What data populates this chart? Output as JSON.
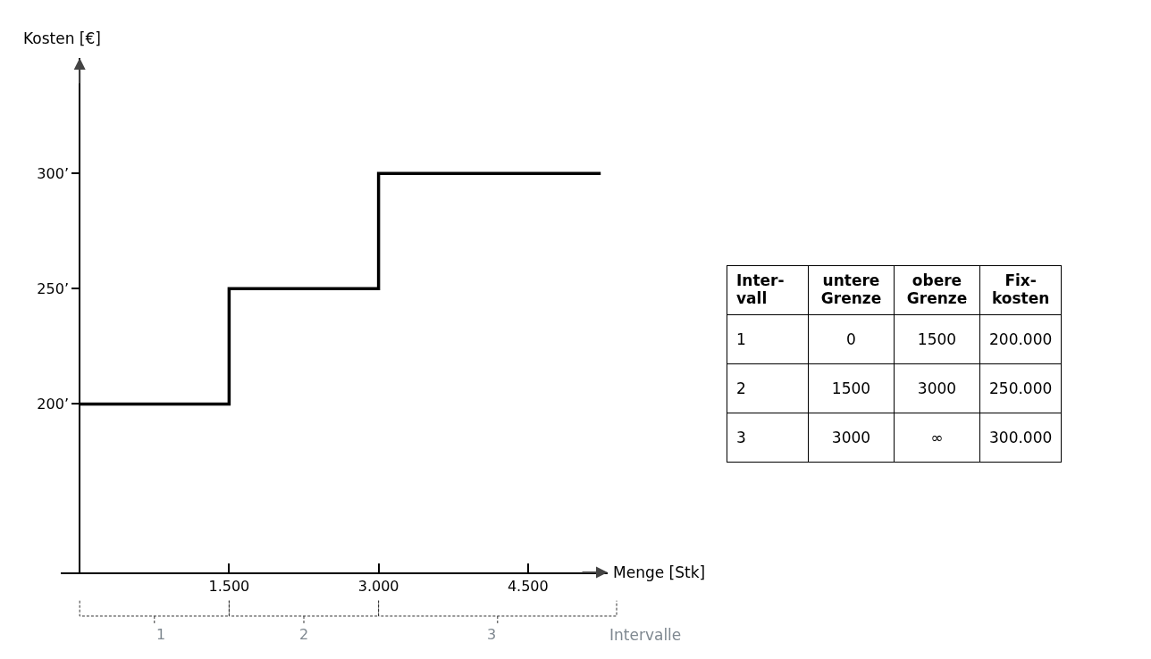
{
  "chart_data": [
    {
      "type": "step",
      "xlabel": "Menge [Stk]",
      "ylabel": "Kosten [€]",
      "x": [
        0,
        1500,
        3000,
        5230
      ],
      "values": [
        200,
        250,
        300,
        300
      ],
      "color": "#000000",
      "xlim": [
        -190,
        5300
      ],
      "ylim": [
        127,
        350
      ],
      "xticks": [
        {
          "value": 1500,
          "label": "1.500"
        },
        {
          "value": 3000,
          "label": "3.000"
        },
        {
          "value": 4500,
          "label": "4.500"
        }
      ],
      "yticks": [
        {
          "value": 200,
          "label": "200’"
        },
        {
          "value": 250,
          "label": "250’"
        },
        {
          "value": 300,
          "label": "300’"
        }
      ],
      "annotations": [
        "1",
        "2",
        "3",
        "Intervalle"
      ],
      "grid": false,
      "legend": false,
      "marker": "none",
      "line_style": "solid"
    },
    {
      "type": "other",
      "ylabel": "Inter-vall",
      "categories": [
        "untere Grenze",
        "obere Grenze",
        "Fix-kosten"
      ],
      "y_categories": [
        "1",
        "2",
        "3"
      ],
      "cell_labels": [
        [
          "0",
          "1500",
          "200.000"
        ],
        [
          "1500",
          "3000",
          "250.000"
        ],
        [
          "3000",
          "∞",
          "300.000"
        ]
      ]
    }
  ]
}
